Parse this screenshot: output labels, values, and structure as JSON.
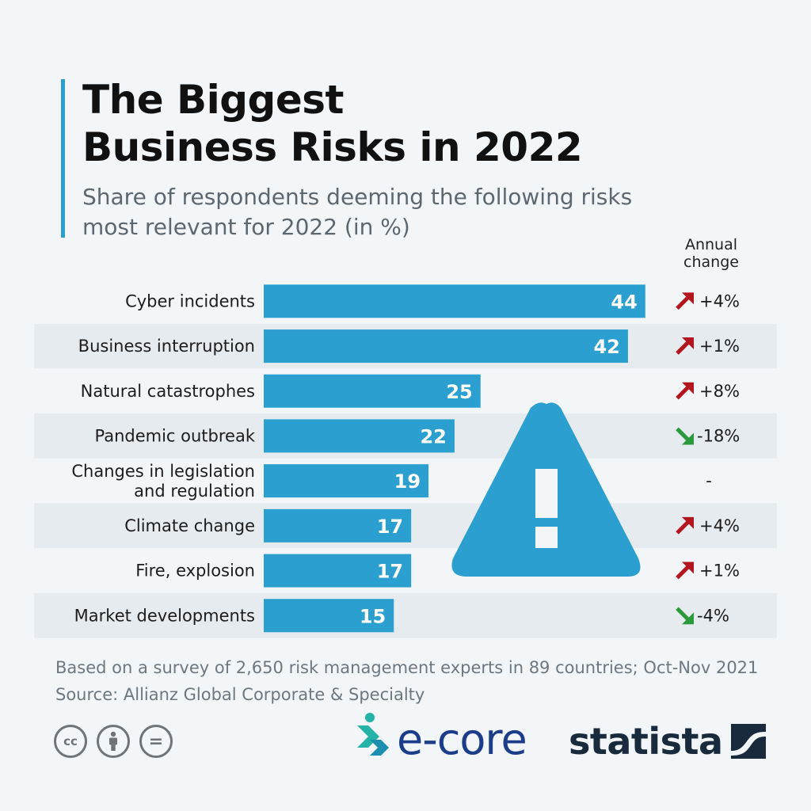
{
  "header": {
    "title_line1": "The Biggest",
    "title_line2": "Business Risks in 2022",
    "subtitle_line1": "Share of respondents deeming the following risks",
    "subtitle_line2": "most relevant for 2022 (in %)",
    "annual_change_line1": "Annual",
    "annual_change_line2": "change"
  },
  "chart_data": {
    "type": "bar",
    "orientation": "horizontal",
    "categories": [
      [
        "Cyber incidents"
      ],
      [
        "Business interruption"
      ],
      [
        "Natural catastrophes"
      ],
      [
        "Pandemic outbreak"
      ],
      [
        "Changes in legislation",
        "and regulation"
      ],
      [
        "Climate change"
      ],
      [
        "Fire, explosion"
      ],
      [
        "Market developments"
      ]
    ],
    "values": [
      44,
      42,
      25,
      22,
      19,
      17,
      17,
      15
    ],
    "annual_change": [
      "+4%",
      "+1%",
      "+8%",
      "-18%",
      "-",
      "+4%",
      "+1%",
      "-4%"
    ],
    "change_direction": [
      "up",
      "up",
      "up",
      "down",
      "none",
      "up",
      "up",
      "down"
    ],
    "bar_color": "#2a9fd0",
    "up_color": "#b3161d",
    "down_color": "#2a9a3a",
    "alt_row_color": "#e6ebf0",
    "warning_icon_color": "#2a9fd0",
    "grid": false
  },
  "footer": {
    "note": "Based on a survey of 2,650 risk management experts in 89 countries; Oct-Nov 2021",
    "source": "Source: Allianz Global Corporate & Specialty",
    "cc_icons": [
      "cc-icon",
      "attribution-icon",
      "no-derivatives-icon"
    ],
    "cc_label": "cc",
    "nd_label": "=",
    "ecore_brand": "e-core",
    "statista_brand": "statista"
  }
}
